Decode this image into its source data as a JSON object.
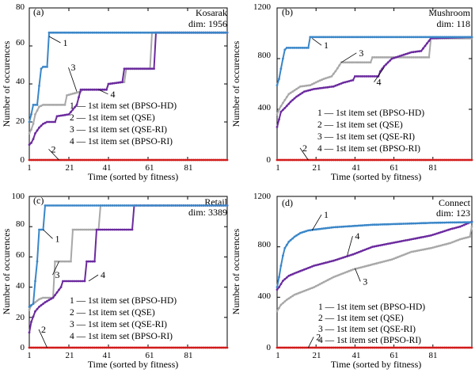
{
  "colors": {
    "bpso_hd": "#3a86c8",
    "qse": "#d21b1b",
    "qse_ri": "#a8a8a8",
    "bpso_ri": "#6b2a9e"
  },
  "chart_data": [
    {
      "type": "line",
      "panel_label": "(a)",
      "dataset": "Kosarak",
      "dim": "dim: 1956",
      "xlabel": "Time (sorted by fitness)",
      "ylabel": "Number of occurences",
      "xlim": [
        1,
        101
      ],
      "ylim": [
        0,
        80
      ],
      "xticks": [
        "1",
        "21",
        "41",
        "61",
        "81"
      ],
      "yticks": [
        "0",
        "20",
        "40",
        "60",
        "80"
      ],
      "legend": [
        "1 — 1st item set (BPSO-HD)",
        "2 — 1st item set (QSE)",
        "3 — 1st item set (QSE-RI)",
        "4 — 1st item set (BPSO-RI)"
      ],
      "series": [
        {
          "label": "1",
          "color_key": "bpso_hd",
          "points": [
            [
              1,
              20
            ],
            [
              2,
              24
            ],
            [
              3,
              29
            ],
            [
              5,
              29
            ],
            [
              6,
              39
            ],
            [
              7,
              48
            ],
            [
              8,
              49
            ],
            [
              10,
              49
            ],
            [
              11,
              67
            ],
            [
              101,
              67
            ]
          ]
        },
        {
          "label": "2",
          "color_key": "qse",
          "points": [
            [
              1,
              0
            ],
            [
              101,
              0
            ]
          ]
        },
        {
          "label": "3",
          "color_key": "qse_ri",
          "points": [
            [
              1,
              14
            ],
            [
              2,
              16
            ],
            [
              3,
              19
            ],
            [
              4,
              24
            ],
            [
              5,
              26
            ],
            [
              6,
              28
            ],
            [
              8,
              29
            ],
            [
              19,
              29
            ],
            [
              20,
              34
            ],
            [
              27,
              36
            ],
            [
              28,
              37
            ],
            [
              40,
              37
            ],
            [
              41,
              40
            ],
            [
              49,
              41
            ],
            [
              50,
              48
            ],
            [
              62,
              48
            ],
            [
              63,
              67
            ],
            [
              101,
              67
            ]
          ]
        },
        {
          "label": "4",
          "color_key": "bpso_ri",
          "points": [
            [
              1,
              8
            ],
            [
              2,
              9
            ],
            [
              3,
              11
            ],
            [
              4,
              14
            ],
            [
              6,
              17
            ],
            [
              8,
              19
            ],
            [
              10,
              20
            ],
            [
              14,
              20
            ],
            [
              15,
              23
            ],
            [
              21,
              24
            ],
            [
              25,
              29
            ],
            [
              26,
              33
            ],
            [
              27,
              37
            ],
            [
              40,
              37
            ],
            [
              41,
              40
            ],
            [
              48,
              41
            ],
            [
              49,
              48
            ],
            [
              64,
              48
            ],
            [
              65,
              67
            ],
            [
              101,
              67
            ]
          ]
        }
      ],
      "label_positions": [
        {
          "text": "1",
          "at": [
            11,
            65
          ],
          "label_at": [
            18,
            60
          ]
        },
        {
          "text": "2",
          "at": [
            16,
            0
          ],
          "label_at": [
            12,
            4
          ]
        },
        {
          "text": "3",
          "at": [
            25,
            36
          ],
          "label_at": [
            22,
            47
          ]
        },
        {
          "text": "4",
          "at": [
            36,
            37
          ],
          "label_at": [
            42,
            33
          ]
        }
      ]
    },
    {
      "type": "line",
      "panel_label": "(b)",
      "dataset": "Mushroom",
      "dim": "dim: 118",
      "xlabel": "Time (sorted by fitness)",
      "ylabel": "Number of occurences",
      "xlim": [
        1,
        101
      ],
      "ylim": [
        0,
        1200
      ],
      "xticks": [
        "1",
        "21",
        "41",
        "61",
        "81"
      ],
      "yticks": [
        "0",
        "400",
        "800",
        "1200"
      ],
      "legend": [
        "1 — 1st item set (BPSO-HD)",
        "2 — 1st item set (QSE)",
        "3 — 1st item set (QSE-RI)",
        "4 — 1st item set (BPSO-RI)"
      ],
      "series": [
        {
          "label": "1",
          "color_key": "bpso_hd",
          "points": [
            [
              1,
              590
            ],
            [
              2,
              640
            ],
            [
              3,
              720
            ],
            [
              4,
              800
            ],
            [
              5,
              870
            ],
            [
              6,
              885
            ],
            [
              17,
              885
            ],
            [
              18,
              970
            ],
            [
              101,
              970
            ]
          ]
        },
        {
          "label": "2",
          "color_key": "qse",
          "points": [
            [
              1,
              0
            ],
            [
              101,
              0
            ]
          ]
        },
        {
          "label": "3",
          "color_key": "qse_ri",
          "points": [
            [
              1,
              360
            ],
            [
              2,
              400
            ],
            [
              4,
              450
            ],
            [
              7,
              520
            ],
            [
              10,
              550
            ],
            [
              13,
              580
            ],
            [
              18,
              590
            ],
            [
              22,
              620
            ],
            [
              25,
              640
            ],
            [
              29,
              660
            ],
            [
              31,
              700
            ],
            [
              34,
              770
            ],
            [
              49,
              770
            ],
            [
              50,
              810
            ],
            [
              79,
              810
            ],
            [
              80,
              960
            ],
            [
              101,
              960
            ]
          ]
        },
        {
          "label": "4",
          "color_key": "bpso_ri",
          "points": [
            [
              1,
              260
            ],
            [
              2,
              320
            ],
            [
              3,
              380
            ],
            [
              5,
              410
            ],
            [
              8,
              460
            ],
            [
              11,
              500
            ],
            [
              15,
              540
            ],
            [
              20,
              560
            ],
            [
              25,
              570
            ],
            [
              30,
              580
            ],
            [
              35,
              610
            ],
            [
              40,
              630
            ],
            [
              41,
              660
            ],
            [
              53,
              660
            ],
            [
              54,
              700
            ],
            [
              56,
              740
            ],
            [
              60,
              800
            ],
            [
              62,
              810
            ],
            [
              70,
              850
            ],
            [
              75,
              860
            ],
            [
              80,
              960
            ],
            [
              101,
              970
            ]
          ]
        }
      ],
      "label_positions": [
        {
          "text": "1",
          "at": [
            19,
            960
          ],
          "label_at": [
            25,
            880
          ]
        },
        {
          "text": "2",
          "at": [
            17,
            0
          ],
          "label_at": [
            14,
            70
          ]
        },
        {
          "text": "3",
          "at": [
            34,
            770
          ],
          "label_at": [
            43,
            820
          ]
        },
        {
          "text": "4",
          "at": [
            56,
            730
          ],
          "label_at": [
            52,
            590
          ]
        }
      ]
    },
    {
      "type": "line",
      "panel_label": "(c)",
      "dataset": "Retail",
      "dim": "dim: 3389",
      "xlabel": "Time (sorted by fitness)",
      "ylabel": "Number of occurences",
      "xlim": [
        1,
        101
      ],
      "ylim": [
        0,
        100
      ],
      "xticks": [
        "1",
        "21",
        "41",
        "61",
        "81"
      ],
      "yticks": [
        "0",
        "20",
        "40",
        "60",
        "80",
        "100"
      ],
      "legend": [
        "1 — 1st item set (BPSO-HD)",
        "2 — 1st item set (QSE)",
        "3 — 1st item set (QSE-RI)",
        "4 — 1st item set (BPSO-RI)"
      ],
      "series": [
        {
          "label": "1",
          "color_key": "bpso_hd",
          "points": [
            [
              1,
              27
            ],
            [
              2,
              28
            ],
            [
              3,
              29
            ],
            [
              4,
              44
            ],
            [
              5,
              57
            ],
            [
              6,
              78
            ],
            [
              8,
              78
            ],
            [
              9,
              94
            ],
            [
              101,
              94
            ]
          ]
        },
        {
          "label": "2",
          "color_key": "qse",
          "points": [
            [
              1,
              0
            ],
            [
              101,
              0
            ]
          ]
        },
        {
          "label": "3",
          "color_key": "qse_ri",
          "points": [
            [
              1,
              25
            ],
            [
              2,
              28
            ],
            [
              4,
              30
            ],
            [
              6,
              32
            ],
            [
              8,
              33
            ],
            [
              13,
              33
            ],
            [
              14,
              57
            ],
            [
              22,
              57
            ],
            [
              23,
              78
            ],
            [
              36,
              78
            ],
            [
              37,
              94
            ],
            [
              101,
              94
            ]
          ]
        },
        {
          "label": "4",
          "color_key": "bpso_ri",
          "points": [
            [
              1,
              10
            ],
            [
              2,
              17
            ],
            [
              4,
              24
            ],
            [
              6,
              27
            ],
            [
              9,
              30
            ],
            [
              13,
              33
            ],
            [
              17,
              40
            ],
            [
              18,
              44
            ],
            [
              29,
              44
            ],
            [
              30,
              57
            ],
            [
              34,
              57
            ],
            [
              35,
              78
            ],
            [
              53,
              78
            ],
            [
              54,
              94
            ],
            [
              101,
              94
            ]
          ]
        }
      ],
      "label_positions": [
        {
          "text": "1",
          "at": [
            8,
            78
          ],
          "label_at": [
            14,
            70
          ]
        },
        {
          "text": "2",
          "at": [
            10,
            0
          ],
          "label_at": [
            7,
            10
          ]
        },
        {
          "text": "3",
          "at": [
            16,
            57
          ],
          "label_at": [
            14,
            46
          ]
        },
        {
          "text": "4",
          "at": [
            31,
            44
          ],
          "label_at": [
            37,
            46
          ]
        }
      ]
    },
    {
      "type": "line",
      "panel_label": "(d)",
      "dataset": "Connect",
      "dim": "dim: 123",
      "xlabel": "Time (sorted by fitness)",
      "ylabel": "Number of occurences",
      "xlim": [
        1,
        101
      ],
      "ylim": [
        0,
        1200
      ],
      "xticks": [
        "1",
        "21",
        "41",
        "61",
        "81"
      ],
      "yticks": [
        "0",
        "400",
        "800",
        "1200"
      ],
      "legend": [
        "1 — 1st item set (BPSO-HD)",
        "2 — 1st item set (QSE)",
        "3 — 1st item set (QSE-RI)",
        "4 — 1st item set (BPSO-RI)"
      ],
      "series": [
        {
          "label": "1",
          "color_key": "bpso_hd",
          "points": [
            [
              1,
              480
            ],
            [
              2,
              560
            ],
            [
              3,
              650
            ],
            [
              4,
              730
            ],
            [
              5,
              790
            ],
            [
              7,
              840
            ],
            [
              10,
              880
            ],
            [
              13,
              910
            ],
            [
              17,
              930
            ],
            [
              22,
              940
            ],
            [
              30,
              955
            ],
            [
              40,
              965
            ],
            [
              50,
              975
            ],
            [
              60,
              980
            ],
            [
              70,
              985
            ],
            [
              80,
              990
            ],
            [
              90,
              993
            ],
            [
              101,
              995
            ]
          ]
        },
        {
          "label": "2",
          "color_key": "qse",
          "points": [
            [
              1,
              0
            ],
            [
              101,
              0
            ]
          ]
        },
        {
          "label": "3",
          "color_key": "qse_ri",
          "points": [
            [
              1,
              290
            ],
            [
              3,
              340
            ],
            [
              6,
              380
            ],
            [
              10,
              420
            ],
            [
              15,
              450
            ],
            [
              20,
              480
            ],
            [
              25,
              520
            ],
            [
              30,
              560
            ],
            [
              40,
              620
            ],
            [
              50,
              660
            ],
            [
              60,
              700
            ],
            [
              70,
              760
            ],
            [
              80,
              790
            ],
            [
              90,
              830
            ],
            [
              95,
              860
            ],
            [
              100,
              880
            ],
            [
              101,
              960
            ]
          ]
        },
        {
          "label": "4",
          "color_key": "bpso_ri",
          "points": [
            [
              1,
              460
            ],
            [
              2,
              480
            ],
            [
              4,
              530
            ],
            [
              7,
              570
            ],
            [
              10,
              590
            ],
            [
              15,
              620
            ],
            [
              20,
              650
            ],
            [
              25,
              670
            ],
            [
              30,
              690
            ],
            [
              40,
              740
            ],
            [
              50,
              800
            ],
            [
              60,
              830
            ],
            [
              70,
              860
            ],
            [
              80,
              890
            ],
            [
              90,
              940
            ],
            [
              95,
              960
            ],
            [
              101,
              1000
            ]
          ]
        }
      ],
      "label_positions": [
        {
          "text": "1",
          "at": [
            19,
            930
          ],
          "label_at": [
            25,
            1030
          ]
        },
        {
          "text": "2",
          "at": [
            17,
            0
          ],
          "label_at": [
            21,
            60
          ]
        },
        {
          "text": "3",
          "at": [
            41,
            630
          ],
          "label_at": [
            45,
            500
          ]
        },
        {
          "text": "4",
          "at": [
            37,
            730
          ],
          "label_at": [
            41,
            860
          ]
        }
      ]
    }
  ]
}
